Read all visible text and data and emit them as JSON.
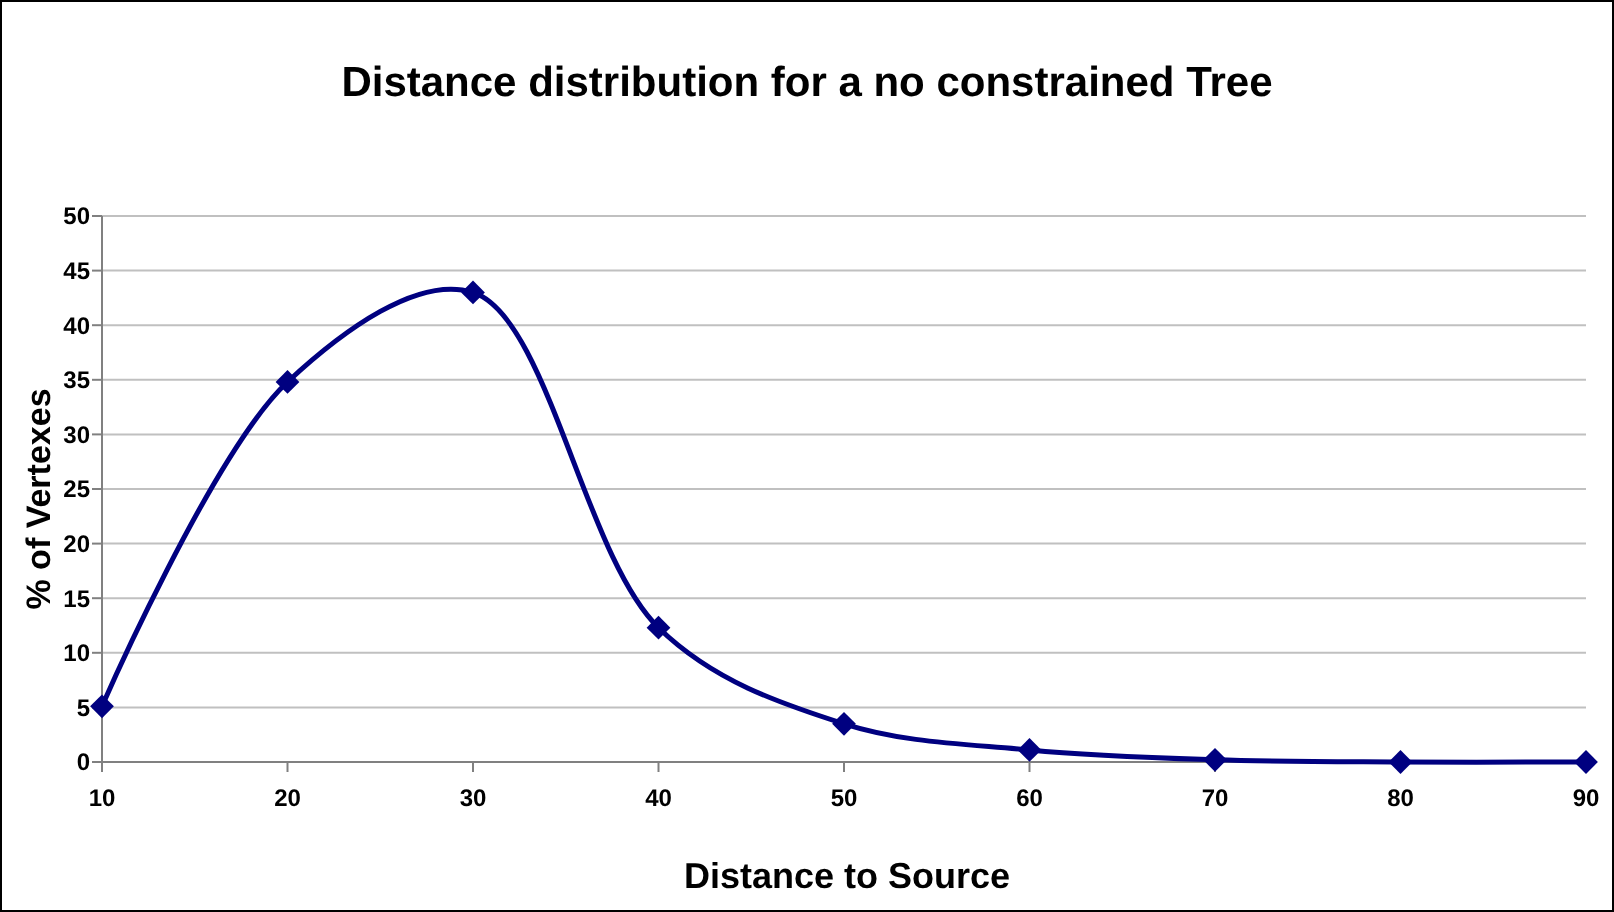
{
  "chart_data": {
    "type": "line",
    "title": "Distance distribution for a no constrained Tree",
    "xlabel": "Distance to Source",
    "ylabel": "% of Vertexes",
    "x": [
      10,
      20,
      30,
      40,
      50,
      60,
      70,
      80,
      90
    ],
    "series": [
      {
        "color": "#000080",
        "values": [
          5.1,
          34.8,
          43.0,
          12.3,
          3.5,
          1.1,
          0.2,
          0,
          0
        ]
      }
    ],
    "xlim": [
      10,
      90
    ],
    "xticks": [
      10,
      20,
      30,
      40,
      50,
      60,
      70,
      80,
      90
    ],
    "ylim": [
      0,
      50
    ],
    "yticks": [
      0,
      5,
      10,
      15,
      20,
      25,
      30,
      35,
      40,
      45,
      50
    ],
    "grid": "y",
    "marker": "diamond",
    "line_style": "solid"
  }
}
